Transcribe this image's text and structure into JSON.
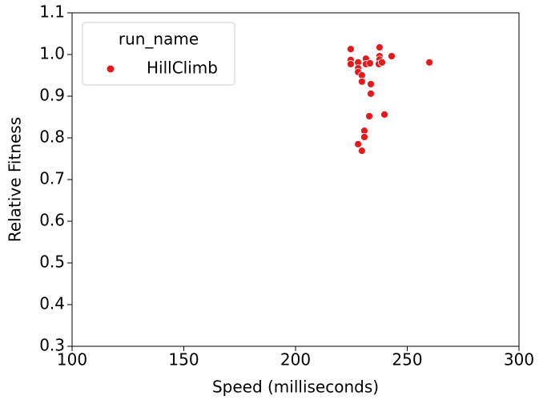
{
  "chart_data": {
    "type": "scatter",
    "x_label": "Speed (milliseconds)",
    "y_label": "Relative Fitness",
    "legend_title": "run_name",
    "xlim": [
      100,
      300
    ],
    "xticks": [
      100,
      150,
      200,
      250,
      300
    ],
    "ylim": [
      0.3,
      1.1
    ],
    "yticks": [
      0.3,
      0.4,
      0.5,
      0.6,
      0.7,
      0.8,
      0.9,
      {
        "value": 1,
        "label": "1.0"
      },
      1.1
    ],
    "legend_position": "upper left",
    "series": [
      {
        "name": "HillClimb",
        "color": "#e41a1c",
        "x": [
          224.7,
          224.7,
          224.7,
          228.0,
          228.0,
          228.0,
          229.7,
          229.7,
          231.5,
          231.5,
          233.3,
          233.7,
          233.7,
          233.0,
          230.8,
          230.8,
          228.0,
          229.7,
          237.6,
          237.6,
          237.6,
          237.3,
          238.7,
          243.0,
          239.8,
          259.9
        ],
        "values": [
          1.013,
          0.987,
          0.977,
          0.981,
          0.967,
          0.958,
          0.95,
          0.935,
          0.99,
          0.977,
          0.979,
          0.929,
          0.906,
          0.852,
          0.817,
          0.802,
          0.785,
          0.769,
          1.017,
          0.996,
          0.988,
          0.977,
          0.981,
          0.996,
          0.856,
          0.981
        ]
      }
    ]
  }
}
